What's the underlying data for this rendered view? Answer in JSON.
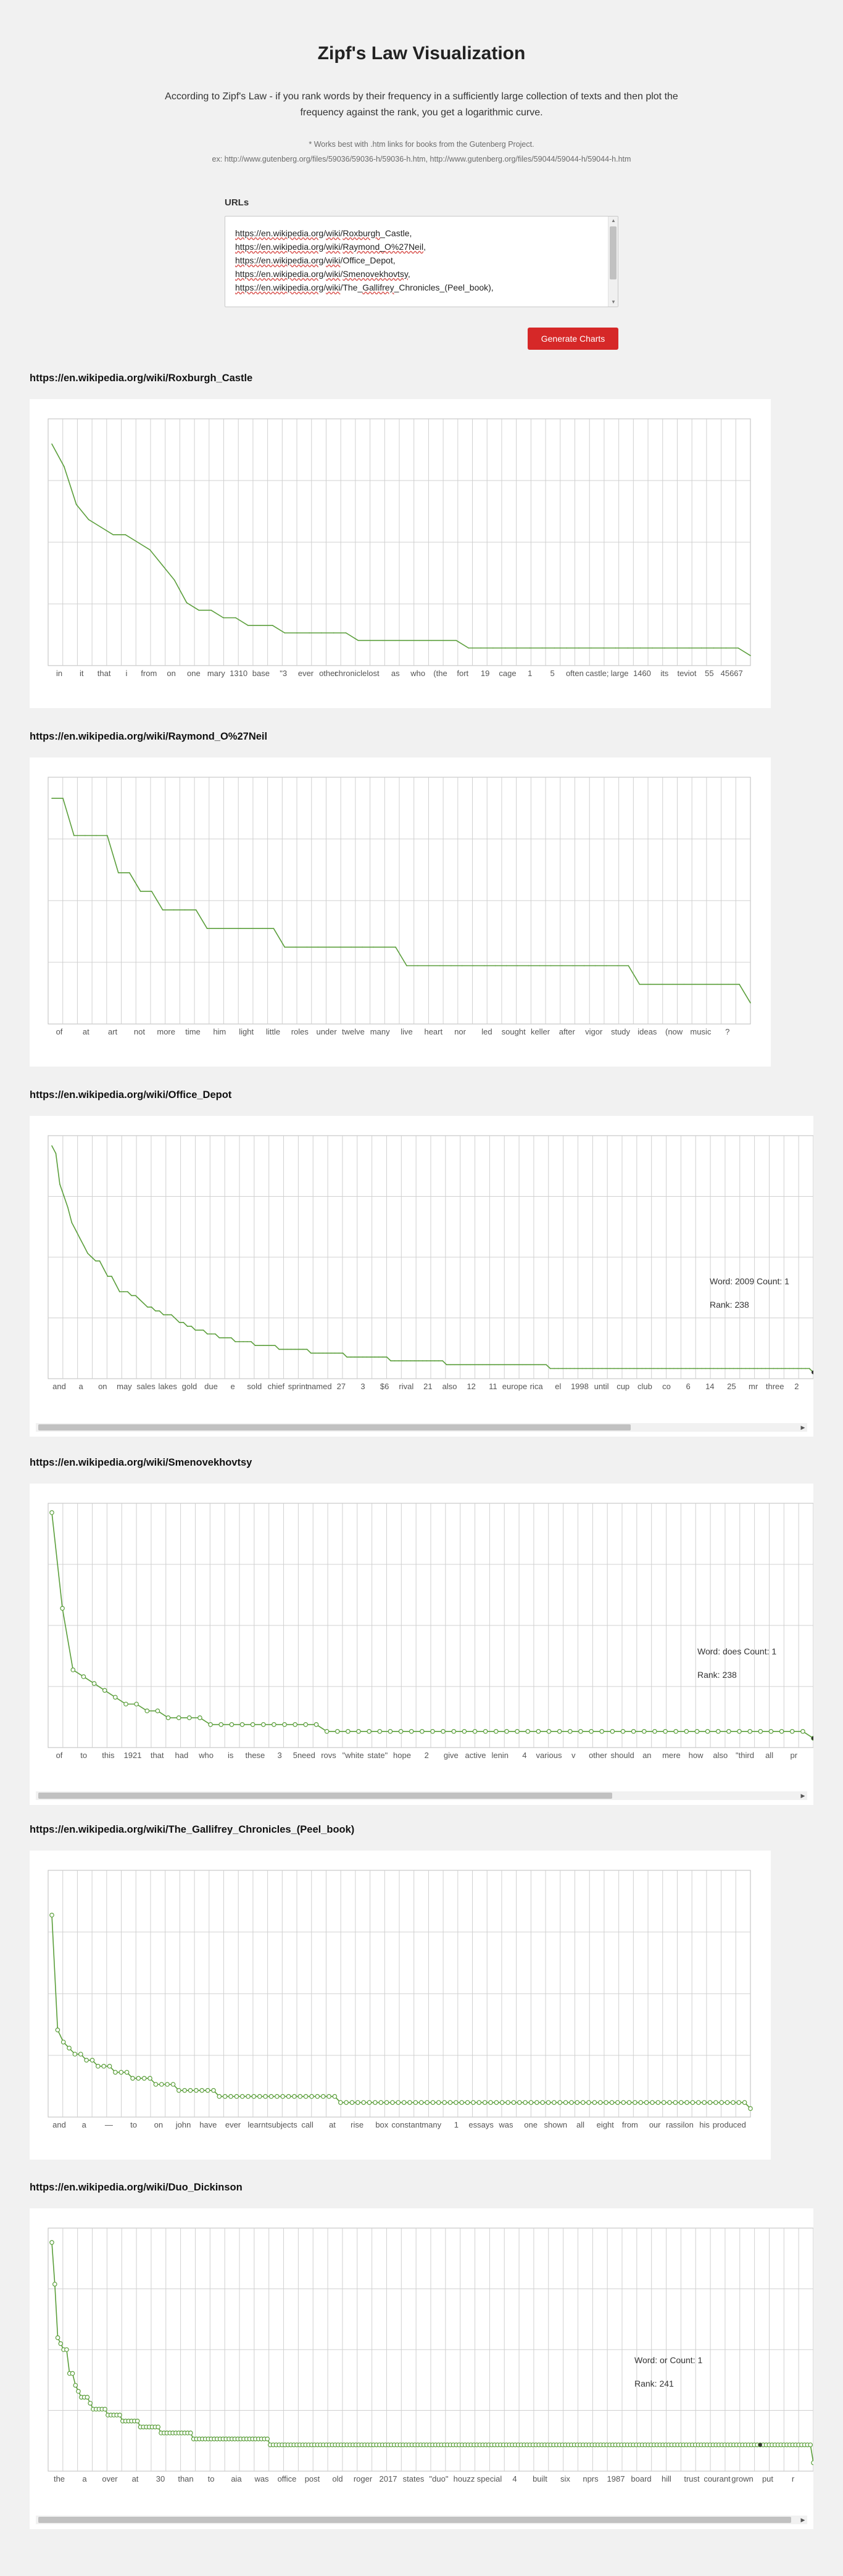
{
  "page": {
    "title": "Zipf's Law Visualization",
    "intro_line1": "According to Zipf's Law - if you rank words by their frequency in a sufficiently large collection of texts and then plot the",
    "intro_line2": "frequency against the rank, you get a logarithmic curve.",
    "note_line1": "* Works best with .htm links for books from the Gutenberg Project.",
    "note_line2": "ex: http://www.gutenberg.org/files/59036/59036-h/59036-h.htm, http://www.gutenberg.org/files/59044/59044-h/59044-h.htm"
  },
  "form": {
    "urls_label": "URLs",
    "urls_lines": [
      [
        "https://",
        "en.wikipedia.org",
        "/",
        "wiki",
        "/",
        "Roxburgh",
        "_Castle,"
      ],
      [
        "https://",
        "en.wikipedia.org",
        "/",
        "wiki",
        "/",
        "Raymond_O%27Neil",
        ","
      ],
      [
        "https://",
        "en.wikipedia.org",
        "/",
        "wiki",
        "/Office_Depot,"
      ],
      [
        "https://",
        "en.wikipedia.org",
        "/",
        "wiki",
        "/",
        "Smenovekhovtsy",
        ","
      ],
      [
        "https://",
        "en.wikipedia.org",
        "/",
        "wiki",
        "/The_",
        "Gallifrey",
        "_Chronicles_(Peel_book),"
      ]
    ],
    "generate_label": "Generate Charts"
  },
  "theme": {
    "accent": "#d62828",
    "line_color": "#5a9e3a",
    "grid_color": "#d0d0d0"
  },
  "chart_data": [
    {
      "type": "line",
      "title": "https://en.wikipedia.org/wiki/Roxburgh_Castle",
      "x_tick_labels": [
        "in",
        "it",
        "that",
        "i",
        "from",
        "on",
        "one",
        "mary",
        "1310",
        "base",
        "\"3",
        "ever",
        "other",
        "chronicle",
        "lost",
        "as",
        "who",
        "(the",
        "fort",
        "19",
        "cage",
        "1",
        "5",
        "often",
        "castle;",
        "large",
        "1460",
        "its",
        "teviot",
        "55",
        "45667"
      ],
      "values": [
        29,
        26,
        21,
        19,
        18,
        17,
        17,
        16,
        15,
        13,
        11,
        8,
        7,
        7,
        6,
        6,
        5,
        5,
        5,
        4,
        4,
        4,
        4,
        4,
        4,
        3,
        3,
        3,
        3,
        3,
        3,
        3,
        3,
        3,
        2,
        2,
        2,
        2,
        2,
        2,
        2,
        2,
        2,
        2,
        2,
        2,
        2,
        2,
        2,
        2,
        2,
        2,
        2,
        2,
        2,
        2,
        2,
        1
      ],
      "y_max": 32,
      "markers": false,
      "grid": true,
      "legend": "none"
    },
    {
      "type": "line",
      "title": "https://en.wikipedia.org/wiki/Raymond_O%27Neil",
      "x_tick_labels": [
        "of",
        "at",
        "art",
        "not",
        "more",
        "time",
        "him",
        "light",
        "little",
        "roles",
        "under",
        "twelve",
        "many",
        "live",
        "heart",
        "nor",
        "led",
        "sought",
        "keller",
        "after",
        "vigor",
        "study",
        "ideas",
        "(now",
        "music",
        "?"
      ],
      "values": [
        12,
        12,
        10,
        10,
        10,
        10,
        8,
        8,
        7,
        7,
        6,
        6,
        6,
        6,
        5,
        5,
        5,
        5,
        5,
        5,
        5,
        4,
        4,
        4,
        4,
        4,
        4,
        4,
        4,
        4,
        4,
        4,
        3,
        3,
        3,
        3,
        3,
        3,
        3,
        3,
        3,
        3,
        3,
        3,
        3,
        3,
        3,
        3,
        3,
        3,
        3,
        3,
        3,
        2,
        2,
        2,
        2,
        2,
        2,
        2,
        2,
        2,
        2,
        1
      ],
      "y_max": 13,
      "markers": false,
      "grid": true,
      "legend": "none"
    },
    {
      "type": "line",
      "title": "https://en.wikipedia.org/wiki/Office_Depot",
      "x_tick_labels": [
        "and",
        "a",
        "on",
        "may",
        "sales",
        "lakes",
        "gold",
        "due",
        "e",
        "sold",
        "chief",
        "sprint",
        "named",
        "27",
        "3",
        "$6",
        "rival",
        "21",
        "also",
        "12",
        "11",
        "europe",
        "rica",
        "el",
        "1998",
        "until",
        "cup",
        "club",
        "co",
        "6",
        "14",
        "25",
        "mr",
        "three",
        "2"
      ],
      "values": [
        60,
        58,
        50,
        47,
        44,
        40,
        38,
        36,
        34,
        32,
        31,
        30,
        30,
        28,
        26,
        26,
        24,
        22,
        22,
        22,
        21,
        21,
        20,
        19,
        18,
        18,
        17,
        17,
        16,
        16,
        16,
        15,
        14,
        14,
        13,
        13,
        12,
        12,
        12,
        11,
        11,
        11,
        10,
        10,
        10,
        10,
        9,
        9,
        9,
        9,
        9,
        8,
        8,
        8,
        8,
        8,
        8,
        7,
        7,
        7,
        7,
        7,
        7,
        7,
        7,
        6,
        6,
        6,
        6,
        6,
        6,
        6,
        6,
        6,
        5,
        5,
        5,
        5,
        5,
        5,
        5,
        5,
        5,
        5,
        5,
        4,
        4,
        4,
        4,
        4,
        4,
        4,
        4,
        4,
        4,
        4,
        4,
        4,
        4,
        3,
        3,
        3,
        3,
        3,
        3,
        3,
        3,
        3,
        3,
        3,
        3,
        3,
        3,
        3,
        3,
        3,
        3,
        3,
        3,
        3,
        3,
        3,
        3,
        3,
        3,
        2,
        2,
        2,
        2,
        2,
        2,
        2,
        2,
        2,
        2,
        2,
        2,
        2,
        2,
        2,
        2,
        2,
        2,
        2,
        2,
        2,
        2,
        2,
        2,
        2,
        2,
        2,
        2,
        2,
        2,
        2,
        2,
        2,
        2,
        2,
        2,
        2,
        2,
        2,
        2,
        2,
        2,
        2,
        2,
        2,
        2,
        2,
        2,
        2,
        2,
        2,
        2,
        2,
        2,
        2,
        2,
        2,
        2,
        2,
        2,
        2,
        2,
        2,
        2,
        2,
        2,
        1
      ],
      "y_max": 62,
      "markers": false,
      "grid": true,
      "legend": "none",
      "tooltip": {
        "word_line": "Word: 2009 Count: 1",
        "rank_line": "Rank: 238"
      },
      "tooltip_index": 237
    },
    {
      "type": "line",
      "title": "https://en.wikipedia.org/wiki/Smenovekhovtsy",
      "x_tick_labels": [
        "of",
        "to",
        "this",
        "1921",
        "that",
        "had",
        "who",
        "is",
        "these",
        "3",
        "5need",
        "rovs",
        "\"white",
        "state\"",
        "hope",
        "2",
        "give",
        "active",
        "lenin",
        "4",
        "various",
        "v",
        "other",
        "should",
        "an",
        "mere",
        "how",
        "also",
        "\"third",
        "all",
        "pr"
      ],
      "values": [
        34,
        20,
        11,
        10,
        9,
        8,
        7,
        6,
        6,
        5,
        5,
        4,
        4,
        4,
        4,
        3,
        3,
        3,
        3,
        3,
        3,
        3,
        3,
        3,
        3,
        3,
        2,
        2,
        2,
        2,
        2,
        2,
        2,
        2,
        2,
        2,
        2,
        2,
        2,
        2,
        2,
        2,
        2,
        2,
        2,
        2,
        2,
        2,
        2,
        2,
        2,
        2,
        2,
        2,
        2,
        2,
        2,
        2,
        2,
        2,
        2,
        2,
        2,
        2,
        2,
        2,
        2,
        2,
        2,
        2,
        2,
        2,
        1
      ],
      "y_max": 35,
      "markers": true,
      "grid": true,
      "legend": "none",
      "tooltip": {
        "word_line": "Word: does Count: 1",
        "rank_line": "Rank: 238"
      },
      "tooltip_index": 237
    },
    {
      "type": "line",
      "title": "https://en.wikipedia.org/wiki/The_Gallifrey_Chronicles_(Peel_book)",
      "x_tick_labels": [
        "and",
        "a",
        "—",
        "to",
        "on",
        "john",
        "have",
        "ever",
        "learnt",
        "subjects",
        "call",
        "at",
        "rise",
        "box",
        "constant",
        "many",
        "1",
        "essays",
        "was",
        "one",
        "shown",
        "all",
        "eight",
        "from",
        "our",
        "rassilon",
        "his",
        "produced"
      ],
      "values": [
        33,
        14,
        12,
        11,
        10,
        10,
        9,
        9,
        8,
        8,
        8,
        7,
        7,
        7,
        6,
        6,
        6,
        6,
        5,
        5,
        5,
        5,
        4,
        4,
        4,
        4,
        4,
        4,
        4,
        3,
        3,
        3,
        3,
        3,
        3,
        3,
        3,
        3,
        3,
        3,
        3,
        3,
        3,
        3,
        3,
        3,
        3,
        3,
        3,
        3,
        2,
        2,
        2,
        2,
        2,
        2,
        2,
        2,
        2,
        2,
        2,
        2,
        2,
        2,
        2,
        2,
        2,
        2,
        2,
        2,
        2,
        2,
        2,
        2,
        2,
        2,
        2,
        2,
        2,
        2,
        2,
        2,
        2,
        2,
        2,
        2,
        2,
        2,
        2,
        2,
        2,
        2,
        2,
        2,
        2,
        2,
        2,
        2,
        2,
        2,
        2,
        2,
        2,
        2,
        2,
        2,
        2,
        2,
        2,
        2,
        2,
        2,
        2,
        2,
        2,
        2,
        2,
        2,
        2,
        2,
        2,
        1
      ],
      "y_max": 40,
      "markers": true,
      "grid": true,
      "legend": "none"
    },
    {
      "type": "line",
      "title": "https://en.wikipedia.org/wiki/Duo_Dickinson",
      "x_tick_labels": [
        "the",
        "a",
        "over",
        "at",
        "30",
        "than",
        "to",
        "aia",
        "was",
        "office",
        "post",
        "old",
        "roger",
        "2017",
        "states",
        "\"duo\"",
        "houzz",
        "special",
        "4",
        "built",
        "six",
        "nprs",
        "1987",
        "board",
        "hill",
        "trust",
        "courant",
        "grown",
        "put",
        "r"
      ],
      "values": [
        38,
        31,
        22,
        21,
        20,
        20,
        16,
        16,
        14,
        13,
        12,
        12,
        12,
        11,
        10,
        10,
        10,
        10,
        10,
        9,
        9,
        9,
        9,
        9,
        8,
        8,
        8,
        8,
        8,
        8,
        7,
        7,
        7,
        7,
        7,
        7,
        7,
        6,
        6,
        6,
        6,
        6,
        6,
        6,
        6,
        6,
        6,
        6,
        5,
        5,
        5,
        5,
        5,
        5,
        5,
        5,
        5,
        5,
        5,
        5,
        5,
        5,
        5,
        5,
        5,
        5,
        5,
        5,
        5,
        5,
        5,
        5,
        5,
        5,
        4,
        4,
        4,
        4,
        4,
        4,
        4,
        4,
        4,
        4,
        4,
        4,
        4,
        4,
        4,
        4,
        4,
        4,
        4,
        4,
        4,
        4,
        4,
        4,
        4,
        4,
        4,
        4,
        4,
        4,
        4,
        4,
        4,
        4,
        4,
        4,
        4,
        4,
        4,
        4,
        4,
        4,
        4,
        4,
        4,
        4,
        4,
        4,
        4,
        4,
        4,
        4,
        4,
        4,
        4,
        4,
        4,
        4,
        4,
        4,
        4,
        4,
        4,
        4,
        4,
        4,
        4,
        4,
        4,
        4,
        4,
        4,
        4,
        4,
        4,
        4,
        4,
        4,
        4,
        4,
        4,
        4,
        4,
        4,
        4,
        4,
        4,
        4,
        4,
        4,
        4,
        4,
        4,
        4,
        4,
        4,
        4,
        4,
        4,
        4,
        4,
        4,
        4,
        4,
        4,
        4,
        4,
        4,
        4,
        4,
        4,
        4,
        4,
        4,
        4,
        4,
        4,
        4,
        4,
        4,
        4,
        4,
        4,
        4,
        4,
        4,
        4,
        4,
        4,
        4,
        4,
        4,
        4,
        4,
        4,
        4,
        4,
        4,
        4,
        4,
        4,
        4,
        4,
        4,
        4,
        4,
        4,
        4,
        4,
        4,
        4,
        4,
        4,
        4,
        4,
        4,
        4,
        4,
        4,
        4,
        4,
        4,
        4,
        4,
        4,
        4,
        4,
        4,
        4,
        4,
        4,
        4,
        4,
        4,
        4,
        4,
        4,
        4,
        4,
        4,
        4,
        4,
        4,
        4,
        1
      ],
      "y_max": 40,
      "markers": true,
      "grid": true,
      "legend": "none",
      "tooltip": {
        "word_line": "Word: or Count: 1",
        "rank_line": "Rank: 241"
      },
      "tooltip_index": 240
    }
  ]
}
